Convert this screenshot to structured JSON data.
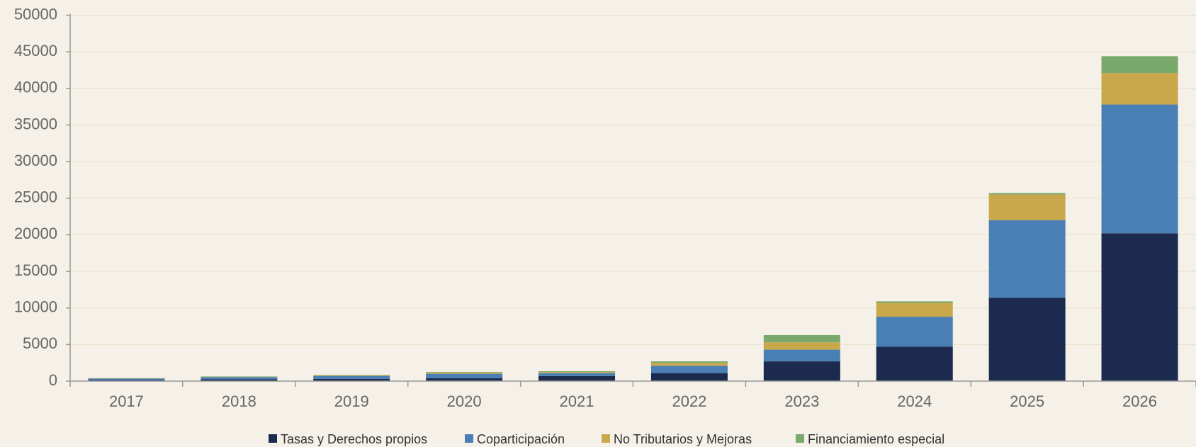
{
  "chart_data": {
    "type": "stacked_bar",
    "categories": [
      "2017",
      "2018",
      "2019",
      "2020",
      "2021",
      "2022",
      "2023",
      "2024",
      "2025",
      "2026"
    ],
    "series": [
      {
        "name": "Tasas y Derechos propios",
        "color": "#1b2a4e",
        "values": [
          150,
          250,
          300,
          400,
          700,
          1100,
          2700,
          4700,
          11400,
          20200
        ]
      },
      {
        "name": "Coparticipación",
        "color": "#4a7fb5",
        "values": [
          200,
          300,
          400,
          600,
          400,
          1000,
          1600,
          4100,
          10600,
          17600
        ]
      },
      {
        "name": "No Tributarios y Mejoras",
        "color": "#c9a84c",
        "values": [
          30,
          50,
          80,
          150,
          150,
          400,
          1000,
          1900,
          3500,
          4300
        ]
      },
      {
        "name": "Financiamiento especial",
        "color": "#79a96b",
        "values": [
          30,
          50,
          70,
          100,
          100,
          200,
          1000,
          200,
          200,
          2300
        ]
      }
    ],
    "ylim": [
      0,
      50000
    ],
    "yticks": [
      0,
      5000,
      10000,
      15000,
      20000,
      25000,
      30000,
      35000,
      40000,
      45000,
      50000
    ],
    "grid": true,
    "legend": "bottom"
  }
}
